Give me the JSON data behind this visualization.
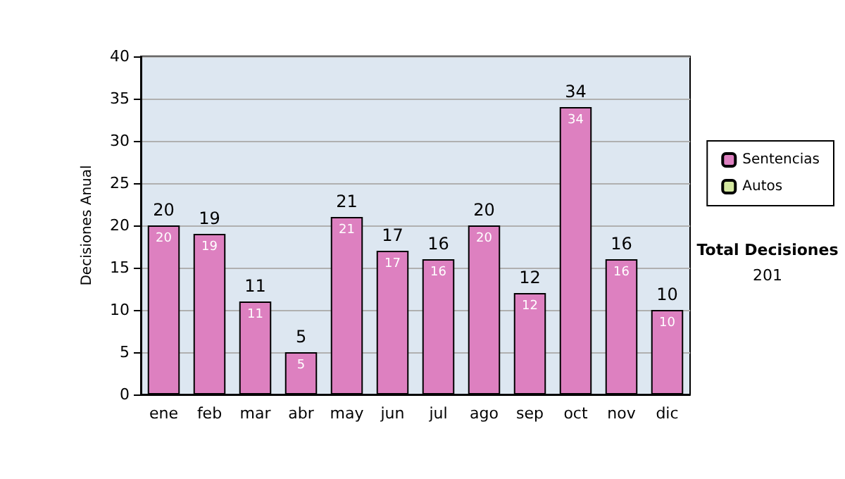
{
  "chart_data": {
    "type": "bar",
    "ylabel": "Decisiones Anual",
    "categories": [
      "ene",
      "feb",
      "mar",
      "abr",
      "may",
      "jun",
      "jul",
      "ago",
      "sep",
      "oct",
      "nov",
      "dic"
    ],
    "series": [
      {
        "name": "Sentencias",
        "color": "#dd80c0",
        "values": [
          20,
          19,
          11,
          5,
          21,
          17,
          16,
          20,
          12,
          34,
          16,
          10
        ],
        "value_labels": [
          "20",
          "19",
          "11",
          "5",
          "21",
          "17",
          "16",
          "20",
          "12",
          "34",
          "16",
          "10"
        ]
      },
      {
        "name": "Autos",
        "color": "#d4e8a0",
        "values": [
          0,
          0,
          0,
          0,
          0,
          0,
          0,
          0,
          0,
          0,
          0,
          0
        ]
      }
    ],
    "stacked": true,
    "totals": [
      "20",
      "19",
      "11",
      "5",
      "21",
      "17",
      "16",
      "20",
      "12",
      "34",
      "16",
      "10"
    ],
    "ylim": [
      0,
      40
    ],
    "yticks": [
      0,
      5,
      10,
      15,
      20,
      25,
      30,
      35,
      40
    ],
    "grid": "y",
    "legend": "right",
    "annotations": [
      "Total Decisiones",
      "201"
    ]
  }
}
